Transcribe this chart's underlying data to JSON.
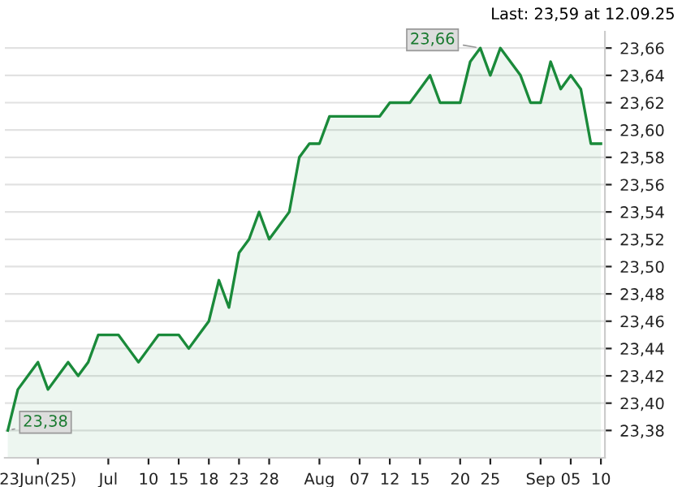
{
  "chart_data": {
    "type": "area",
    "categories": [
      null,
      null,
      null,
      "23Jun(25)",
      null,
      null,
      null,
      null,
      null,
      null,
      "Jul",
      null,
      null,
      null,
      "10",
      null,
      null,
      "15",
      null,
      null,
      "18",
      null,
      null,
      "23",
      null,
      null,
      "28",
      null,
      null,
      null,
      null,
      "Aug",
      null,
      null,
      null,
      "07",
      null,
      null,
      "12",
      null,
      null,
      "15",
      null,
      null,
      null,
      "20",
      null,
      null,
      "25",
      null,
      null,
      null,
      null,
      "Sep",
      null,
      null,
      "05",
      null,
      null,
      "10"
    ],
    "series": [
      {
        "color": "#1a8a3a",
        "values": [
          23.38,
          23.41,
          23.42,
          23.43,
          23.41,
          23.42,
          23.43,
          23.42,
          23.43,
          23.45,
          23.45,
          23.45,
          23.44,
          23.43,
          23.44,
          23.45,
          23.45,
          23.45,
          23.44,
          23.45,
          23.46,
          23.49,
          23.47,
          23.51,
          23.52,
          23.54,
          23.52,
          23.53,
          23.54,
          23.58,
          23.59,
          23.59,
          23.61,
          23.61,
          23.61,
          23.61,
          23.61,
          23.61,
          23.62,
          23.62,
          23.62,
          23.63,
          23.64,
          23.62,
          23.62,
          23.62,
          23.65,
          23.66,
          23.64,
          23.66,
          23.65,
          23.64,
          23.62,
          23.62,
          23.65,
          23.63,
          23.64,
          23.63,
          23.59,
          23.59
        ]
      }
    ],
    "ylim": [
      23.36,
      23.672
    ],
    "yticks": [
      {
        "value": 23.38,
        "label": "23,38"
      },
      {
        "value": 23.4,
        "label": "23,40"
      },
      {
        "value": 23.42,
        "label": "23,42"
      },
      {
        "value": 23.44,
        "label": "23,44"
      },
      {
        "value": 23.46,
        "label": "23,46"
      },
      {
        "value": 23.48,
        "label": "23,48"
      },
      {
        "value": 23.5,
        "label": "23,50"
      },
      {
        "value": 23.52,
        "label": "23,52"
      },
      {
        "value": 23.54,
        "label": "23,54"
      },
      {
        "value": 23.56,
        "label": "23,56"
      },
      {
        "value": 23.58,
        "label": "23,58"
      },
      {
        "value": 23.6,
        "label": "23,60"
      },
      {
        "value": 23.62,
        "label": "23,62"
      },
      {
        "value": 23.64,
        "label": "23,64"
      },
      {
        "value": 23.66,
        "label": "23,66"
      }
    ],
    "grid": "y",
    "annotations": [
      "Last: 23,59 at 12.09.25",
      "23,38",
      "23,66"
    ]
  }
}
